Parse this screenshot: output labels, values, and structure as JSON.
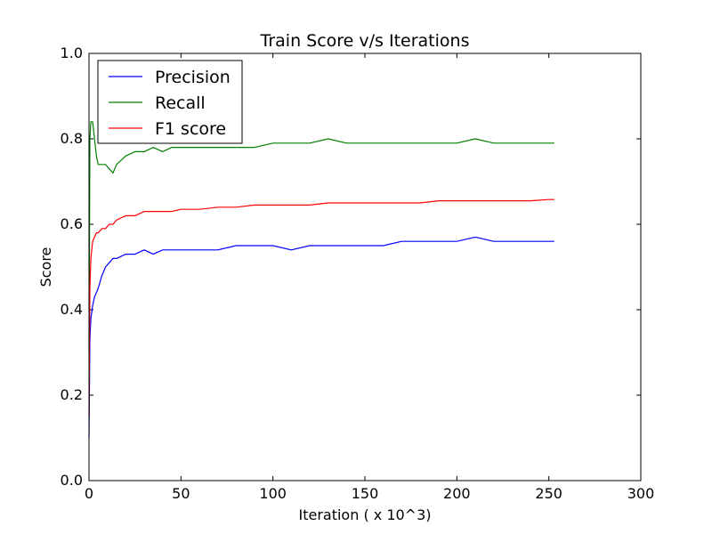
{
  "chart_data": {
    "type": "line",
    "title": "Train Score v/s Iterations",
    "xlabel": "Iteration ( x 10^3)",
    "ylabel": "Score",
    "xlim": [
      0,
      300
    ],
    "ylim": [
      0.0,
      1.0
    ],
    "xticks": [
      0,
      50,
      100,
      150,
      200,
      250,
      300
    ],
    "yticks": [
      0.0,
      0.2,
      0.4,
      0.6,
      0.8,
      1.0
    ],
    "xtick_labels": [
      "0",
      "50",
      "100",
      "150",
      "200",
      "250",
      "300"
    ],
    "ytick_labels": [
      "0.0",
      "0.2",
      "0.4",
      "0.6",
      "0.8",
      "1.0"
    ],
    "grid": false,
    "legend": "top-left",
    "x": [
      0,
      0.5,
      1,
      2,
      3,
      4,
      5,
      7,
      9,
      11,
      13,
      15,
      20,
      25,
      30,
      35,
      40,
      45,
      50,
      60,
      70,
      80,
      90,
      100,
      110,
      120,
      130,
      140,
      150,
      160,
      170,
      180,
      190,
      200,
      210,
      220,
      230,
      240,
      250,
      253
    ],
    "series": [
      {
        "name": "Precision",
        "color": "#0000ff",
        "values": [
          0.1,
          0.33,
          0.38,
          0.41,
          0.43,
          0.44,
          0.45,
          0.48,
          0.5,
          0.51,
          0.52,
          0.52,
          0.53,
          0.53,
          0.54,
          0.53,
          0.54,
          0.54,
          0.54,
          0.54,
          0.54,
          0.55,
          0.55,
          0.55,
          0.54,
          0.55,
          0.55,
          0.55,
          0.55,
          0.55,
          0.56,
          0.56,
          0.56,
          0.56,
          0.57,
          0.56,
          0.56,
          0.56,
          0.56,
          0.56
        ]
      },
      {
        "name": "Recall",
        "color": "#008000",
        "values": [
          0.3,
          0.8,
          0.84,
          0.84,
          0.8,
          0.76,
          0.74,
          0.74,
          0.74,
          0.73,
          0.72,
          0.74,
          0.76,
          0.77,
          0.77,
          0.78,
          0.77,
          0.78,
          0.78,
          0.78,
          0.78,
          0.78,
          0.78,
          0.79,
          0.79,
          0.79,
          0.8,
          0.79,
          0.79,
          0.79,
          0.79,
          0.79,
          0.79,
          0.79,
          0.8,
          0.79,
          0.79,
          0.79,
          0.79,
          0.79
        ]
      },
      {
        "name": "F1 score",
        "color": "#ff0000",
        "values": [
          0.15,
          0.45,
          0.52,
          0.56,
          0.57,
          0.58,
          0.58,
          0.59,
          0.59,
          0.6,
          0.6,
          0.61,
          0.62,
          0.62,
          0.63,
          0.63,
          0.63,
          0.63,
          0.635,
          0.635,
          0.64,
          0.64,
          0.645,
          0.645,
          0.645,
          0.645,
          0.65,
          0.65,
          0.65,
          0.65,
          0.65,
          0.65,
          0.655,
          0.655,
          0.655,
          0.655,
          0.655,
          0.655,
          0.658,
          0.658
        ]
      }
    ]
  }
}
